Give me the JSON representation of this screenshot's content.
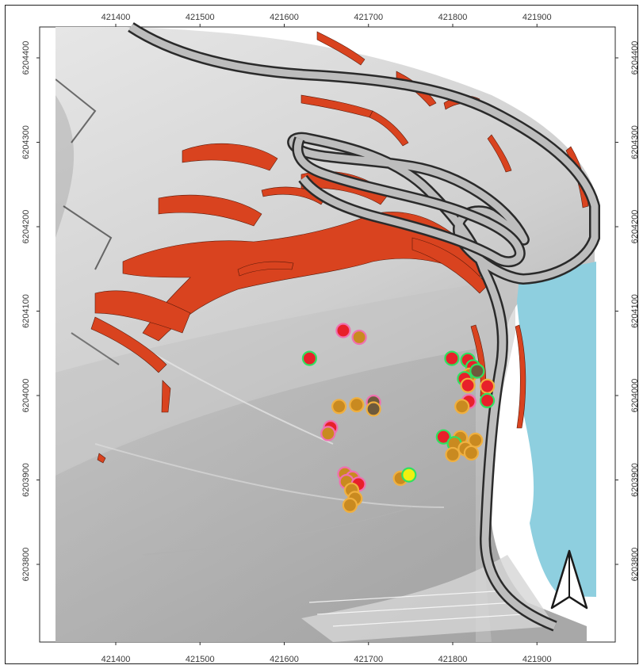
{
  "map": {
    "x_axis_labels": [
      "421400",
      "421500",
      "421600",
      "421700",
      "421800",
      "421900"
    ],
    "y_axis_labels": [
      "6204400",
      "6204300",
      "6204200",
      "6204100",
      "6204000",
      "6203900",
      "6203800"
    ],
    "north_arrow": "north-arrow-icon",
    "colors": {
      "hillshade_light": "#ececec",
      "hillshade_dark": "#9a9a9a",
      "water": "#8ecfdf",
      "scarp": "#d9431f",
      "road_fill": "#bdbdbd",
      "road_edge": "#2a2a2a",
      "marker_red": "#e8202a",
      "marker_orange": "#c98a20",
      "marker_yellow": "#f0f010",
      "marker_brown": "#6e5a3c",
      "outline_pink": "#f070b0",
      "outline_green": "#30e060",
      "outline_orange": "#f0b040"
    },
    "markers": [
      {
        "x": 421670,
        "y": 6204077,
        "fill": "red",
        "outline": "pink"
      },
      {
        "x": 421689,
        "y": 6204069,
        "fill": "orange",
        "outline": "pink"
      },
      {
        "x": 421630,
        "y": 6204044,
        "fill": "red",
        "outline": "green"
      },
      {
        "x": 421665,
        "y": 6203987,
        "fill": "orange",
        "outline": "orange"
      },
      {
        "x": 421655,
        "y": 6203962,
        "fill": "red",
        "outline": "pink"
      },
      {
        "x": 421652,
        "y": 6203955,
        "fill": "orange",
        "outline": "pink"
      },
      {
        "x": 421686,
        "y": 6203989,
        "fill": "orange",
        "outline": "orange"
      },
      {
        "x": 421706,
        "y": 6203992,
        "fill": "brown",
        "outline": "pink"
      },
      {
        "x": 421706,
        "y": 6203984,
        "fill": "brown",
        "outline": "orange"
      },
      {
        "x": 421672,
        "y": 6203907,
        "fill": "orange",
        "outline": "pink"
      },
      {
        "x": 421681,
        "y": 6203902,
        "fill": "orange",
        "outline": "pink"
      },
      {
        "x": 421674,
        "y": 6203898,
        "fill": "orange",
        "outline": "pink"
      },
      {
        "x": 421688,
        "y": 6203895,
        "fill": "red",
        "outline": "pink"
      },
      {
        "x": 421680,
        "y": 6203888,
        "fill": "orange",
        "outline": "orange"
      },
      {
        "x": 421684,
        "y": 6203878,
        "fill": "orange",
        "outline": "orange"
      },
      {
        "x": 421678,
        "y": 6203870,
        "fill": "orange",
        "outline": "orange"
      },
      {
        "x": 421738,
        "y": 6203902,
        "fill": "orange",
        "outline": "orange"
      },
      {
        "x": 421748,
        "y": 6203906,
        "fill": "yellow",
        "outline": "green"
      },
      {
        "x": 421799,
        "y": 6204044,
        "fill": "red",
        "outline": "green"
      },
      {
        "x": 421818,
        "y": 6204042,
        "fill": "red",
        "outline": "green"
      },
      {
        "x": 421824,
        "y": 6204034,
        "fill": "red",
        "outline": "green"
      },
      {
        "x": 421820,
        "y": 6204024,
        "fill": "orange",
        "outline": "orange"
      },
      {
        "x": 421814,
        "y": 6204020,
        "fill": "red",
        "outline": "green"
      },
      {
        "x": 421829,
        "y": 6204029,
        "fill": "brown",
        "outline": "green"
      },
      {
        "x": 421818,
        "y": 6204012,
        "fill": "red",
        "outline": "orange"
      },
      {
        "x": 421841,
        "y": 6204011,
        "fill": "red",
        "outline": "orange"
      },
      {
        "x": 421819,
        "y": 6203993,
        "fill": "red",
        "outline": "pink"
      },
      {
        "x": 421811,
        "y": 6203987,
        "fill": "orange",
        "outline": "orange"
      },
      {
        "x": 421841,
        "y": 6203994,
        "fill": "red",
        "outline": "green"
      },
      {
        "x": 421789,
        "y": 6203951,
        "fill": "red",
        "outline": "green"
      },
      {
        "x": 421809,
        "y": 6203950,
        "fill": "orange",
        "outline": "orange"
      },
      {
        "x": 421827,
        "y": 6203947,
        "fill": "orange",
        "outline": "orange"
      },
      {
        "x": 421802,
        "y": 6203943,
        "fill": "orange",
        "outline": "green"
      },
      {
        "x": 421815,
        "y": 6203937,
        "fill": "orange",
        "outline": "orange"
      },
      {
        "x": 421822,
        "y": 6203932,
        "fill": "orange",
        "outline": "orange"
      },
      {
        "x": 421800,
        "y": 6203930,
        "fill": "orange",
        "outline": "orange"
      }
    ]
  }
}
